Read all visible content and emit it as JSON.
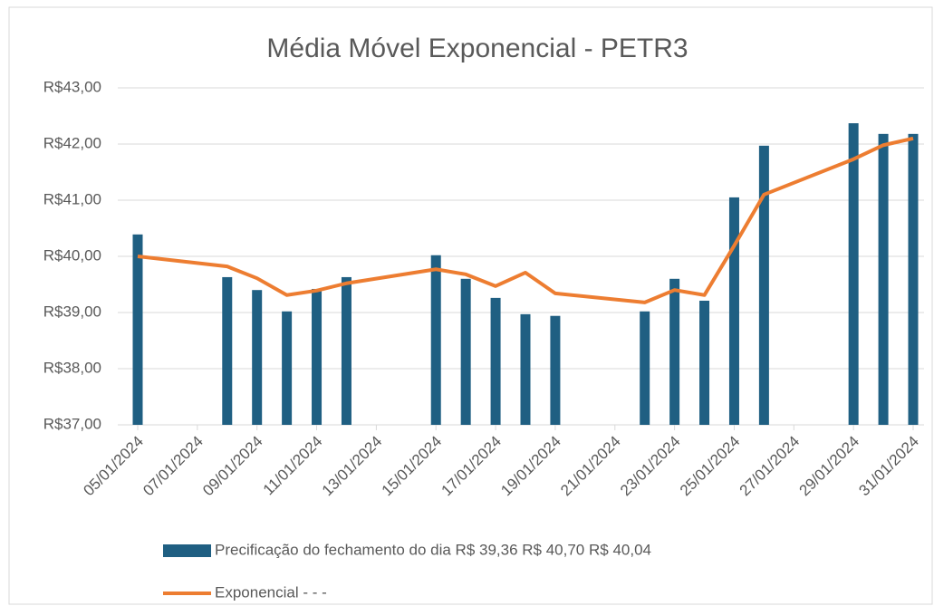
{
  "chart_data": {
    "type": "bar-line",
    "title": "Média Móvel Exponencial - PETR3",
    "x": [
      "05/01/2024",
      "08/01/2024",
      "09/01/2024",
      "10/01/2024",
      "11/01/2024",
      "12/01/2024",
      "15/01/2024",
      "16/01/2024",
      "17/01/2024",
      "18/01/2024",
      "19/01/2024",
      "22/01/2024",
      "23/01/2024",
      "24/01/2024",
      "25/01/2024",
      "26/01/2024",
      "29/01/2024",
      "30/01/2024",
      "31/01/2024"
    ],
    "xlim": [
      "05/01/2024",
      "31/01/2024"
    ],
    "xticks": [
      "05/01/2024",
      "07/01/2024",
      "09/01/2024",
      "11/01/2024",
      "13/01/2024",
      "15/01/2024",
      "17/01/2024",
      "19/01/2024",
      "21/01/2024",
      "23/01/2024",
      "25/01/2024",
      "27/01/2024",
      "29/01/2024",
      "31/01/2024"
    ],
    "series": [
      {
        "name": "Precificação do fechamento do dia R$ 39,36 R$ 40,70 R$ 40,04",
        "type": "bar",
        "color": "#1f5f82",
        "values": [
          40.39,
          39.63,
          39.4,
          39.02,
          39.42,
          39.63,
          40.02,
          39.6,
          39.26,
          38.97,
          38.94,
          39.02,
          39.6,
          39.21,
          41.05,
          41.97,
          42.37,
          42.18,
          42.18
        ]
      },
      {
        "name": "Exponencial - - -",
        "type": "line",
        "color": "#ed7d31",
        "values": [
          40.0,
          39.82,
          39.61,
          39.31,
          39.39,
          39.52,
          39.77,
          39.68,
          39.47,
          39.71,
          39.34,
          39.18,
          39.4,
          39.31,
          40.19,
          41.1,
          41.73,
          41.98,
          42.1
        ]
      }
    ],
    "ylim": [
      37,
      43
    ],
    "yticks": [
      {
        "value": 37,
        "label": "R$37,00"
      },
      {
        "value": 38,
        "label": "R$38,00"
      },
      {
        "value": 39,
        "label": "R$39,00"
      },
      {
        "value": 40,
        "label": "R$40,00"
      },
      {
        "value": 41,
        "label": "R$41,00"
      },
      {
        "value": 42,
        "label": "R$42,00"
      },
      {
        "value": 43,
        "label": "R$43,00"
      }
    ],
    "grid": true
  }
}
